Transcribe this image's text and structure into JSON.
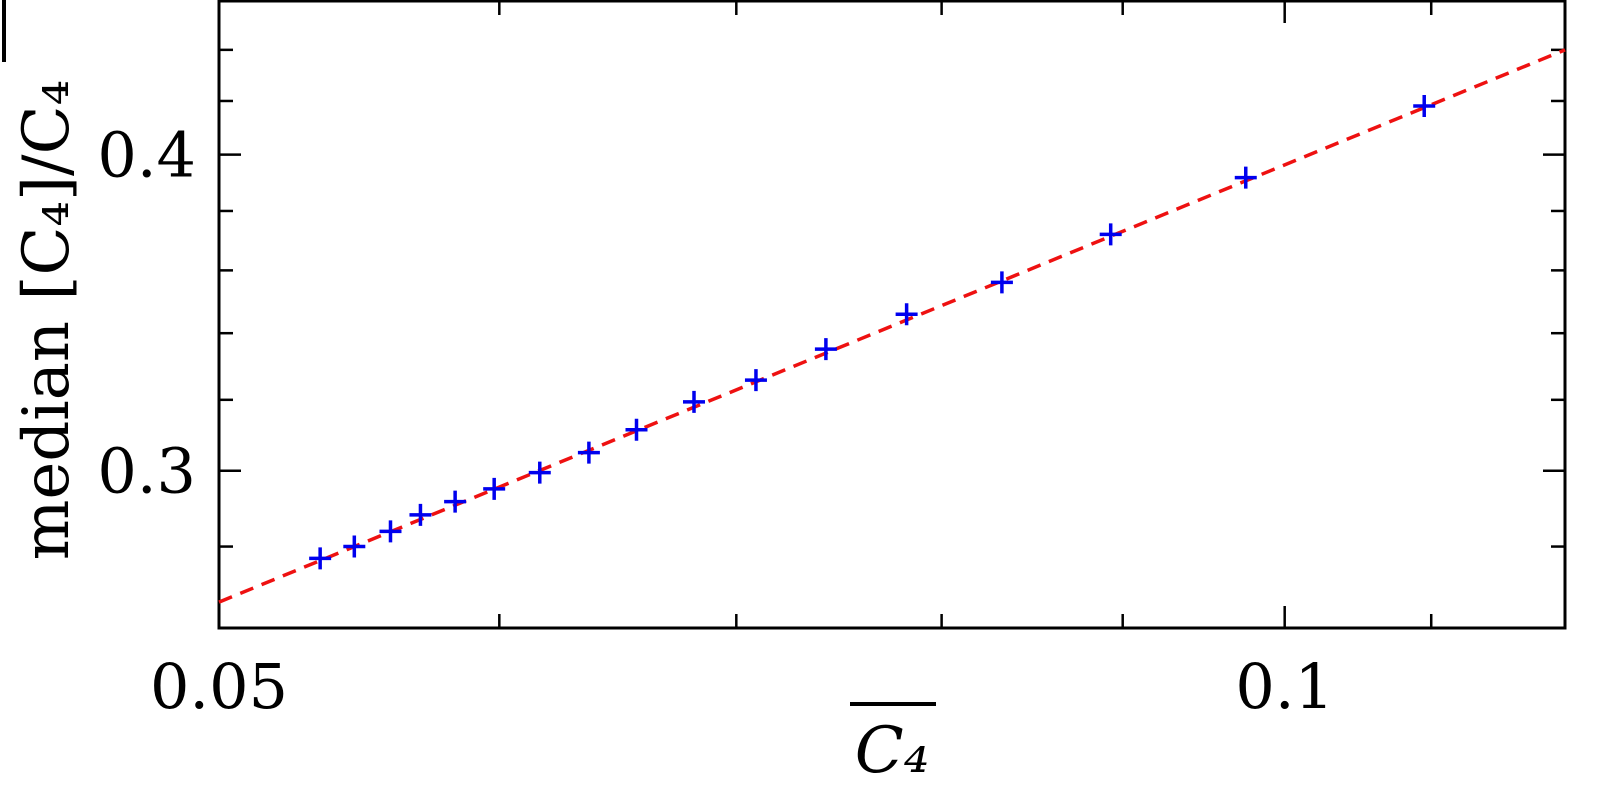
{
  "chart_data": {
    "type": "scatter",
    "xlabel": "C₄",
    "ylabel": "median [C₄]/C₄",
    "xlog": true,
    "ylog": true,
    "xlim": [
      0.05,
      0.12
    ],
    "ylim": [
      0.26,
      0.46
    ],
    "xticks": [
      0.05,
      0.1
    ],
    "xminorticks": [
      0.06,
      0.07,
      0.08,
      0.09,
      0.11
    ],
    "yticks": [
      0.3,
      0.4
    ],
    "yminorticks": [
      0.28,
      0.32,
      0.34,
      0.36,
      0.38,
      0.42,
      0.44
    ],
    "series": [
      {
        "color": "#0000ee",
        "x": [
          0.0534,
          0.0546,
          0.0559,
          0.057,
          0.0583,
          0.0598,
          0.0616,
          0.0636,
          0.0656,
          0.0681,
          0.0709,
          0.0742,
          0.0782,
          0.0832,
          0.0893,
          0.0975,
          0.1095
        ],
        "values": [
          0.277,
          0.28,
          0.2839,
          0.2882,
          0.2917,
          0.2951,
          0.2995,
          0.305,
          0.3114,
          0.3194,
          0.3258,
          0.3351,
          0.3459,
          0.3561,
          0.372,
          0.3917,
          0.4181
        ]
      }
    ],
    "fit": {
      "color": "#ee1111",
      "x": [
        0.05,
        0.12
      ],
      "values": [
        0.2662,
        0.44
      ]
    }
  }
}
